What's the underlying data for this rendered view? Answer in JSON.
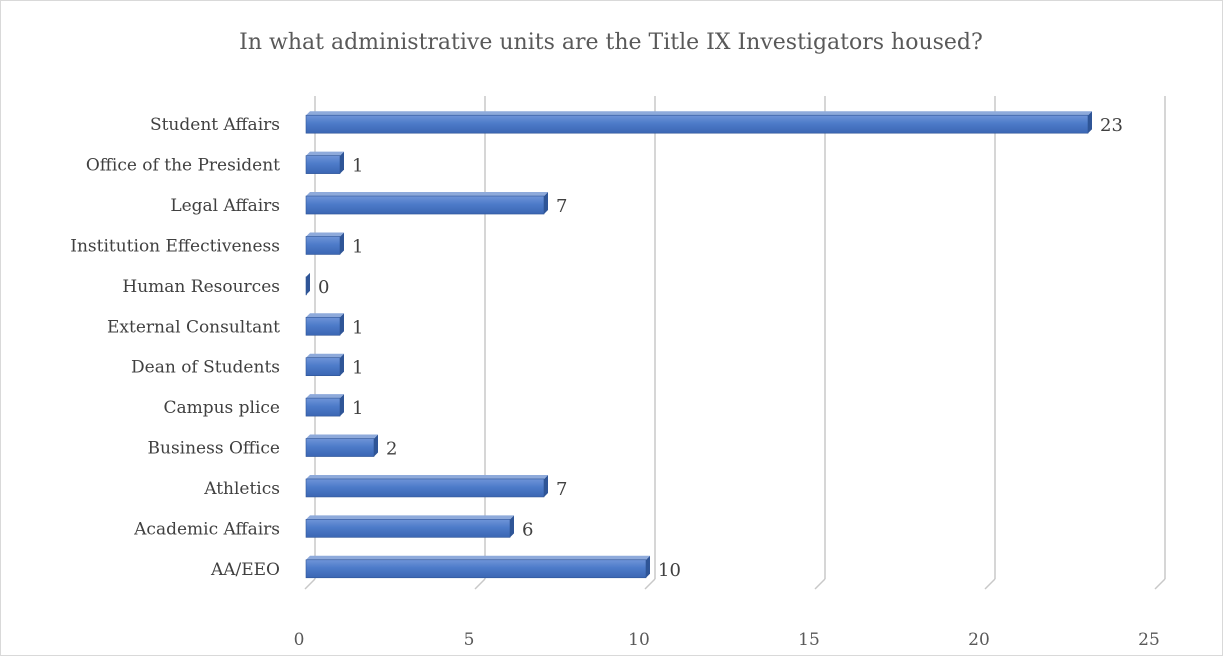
{
  "chart_data": {
    "type": "bar",
    "orientation": "horizontal",
    "style": "3d-clustered",
    "title": "In what administrative units are the Title IX Investigators housed?",
    "categories": [
      "AA/EEO",
      "Academic Affairs",
      "Athletics",
      "Business Office",
      "Campus plice",
      "Dean of Students ",
      "External Consultant",
      "Human Resources",
      "Institution Effectiveness",
      "Legal Affairs",
      "Office of the President",
      "Student Affairs"
    ],
    "values": [
      10,
      6,
      7,
      2,
      1,
      1,
      1,
      0,
      1,
      7,
      1,
      23
    ],
    "data_labels": [
      "10",
      "6",
      "7",
      "2",
      "1",
      "1",
      "1",
      "0",
      "1",
      "7",
      "1",
      "23"
    ],
    "xticks": [
      0,
      5,
      10,
      15,
      20,
      25
    ],
    "xtick_labels": [
      "0",
      "5",
      "10",
      "15",
      "20",
      "25"
    ],
    "xlim": [
      0,
      25
    ],
    "xlabel": "",
    "ylabel": "",
    "grid": true,
    "legend": "none",
    "bar_color": "#4472c4"
  }
}
